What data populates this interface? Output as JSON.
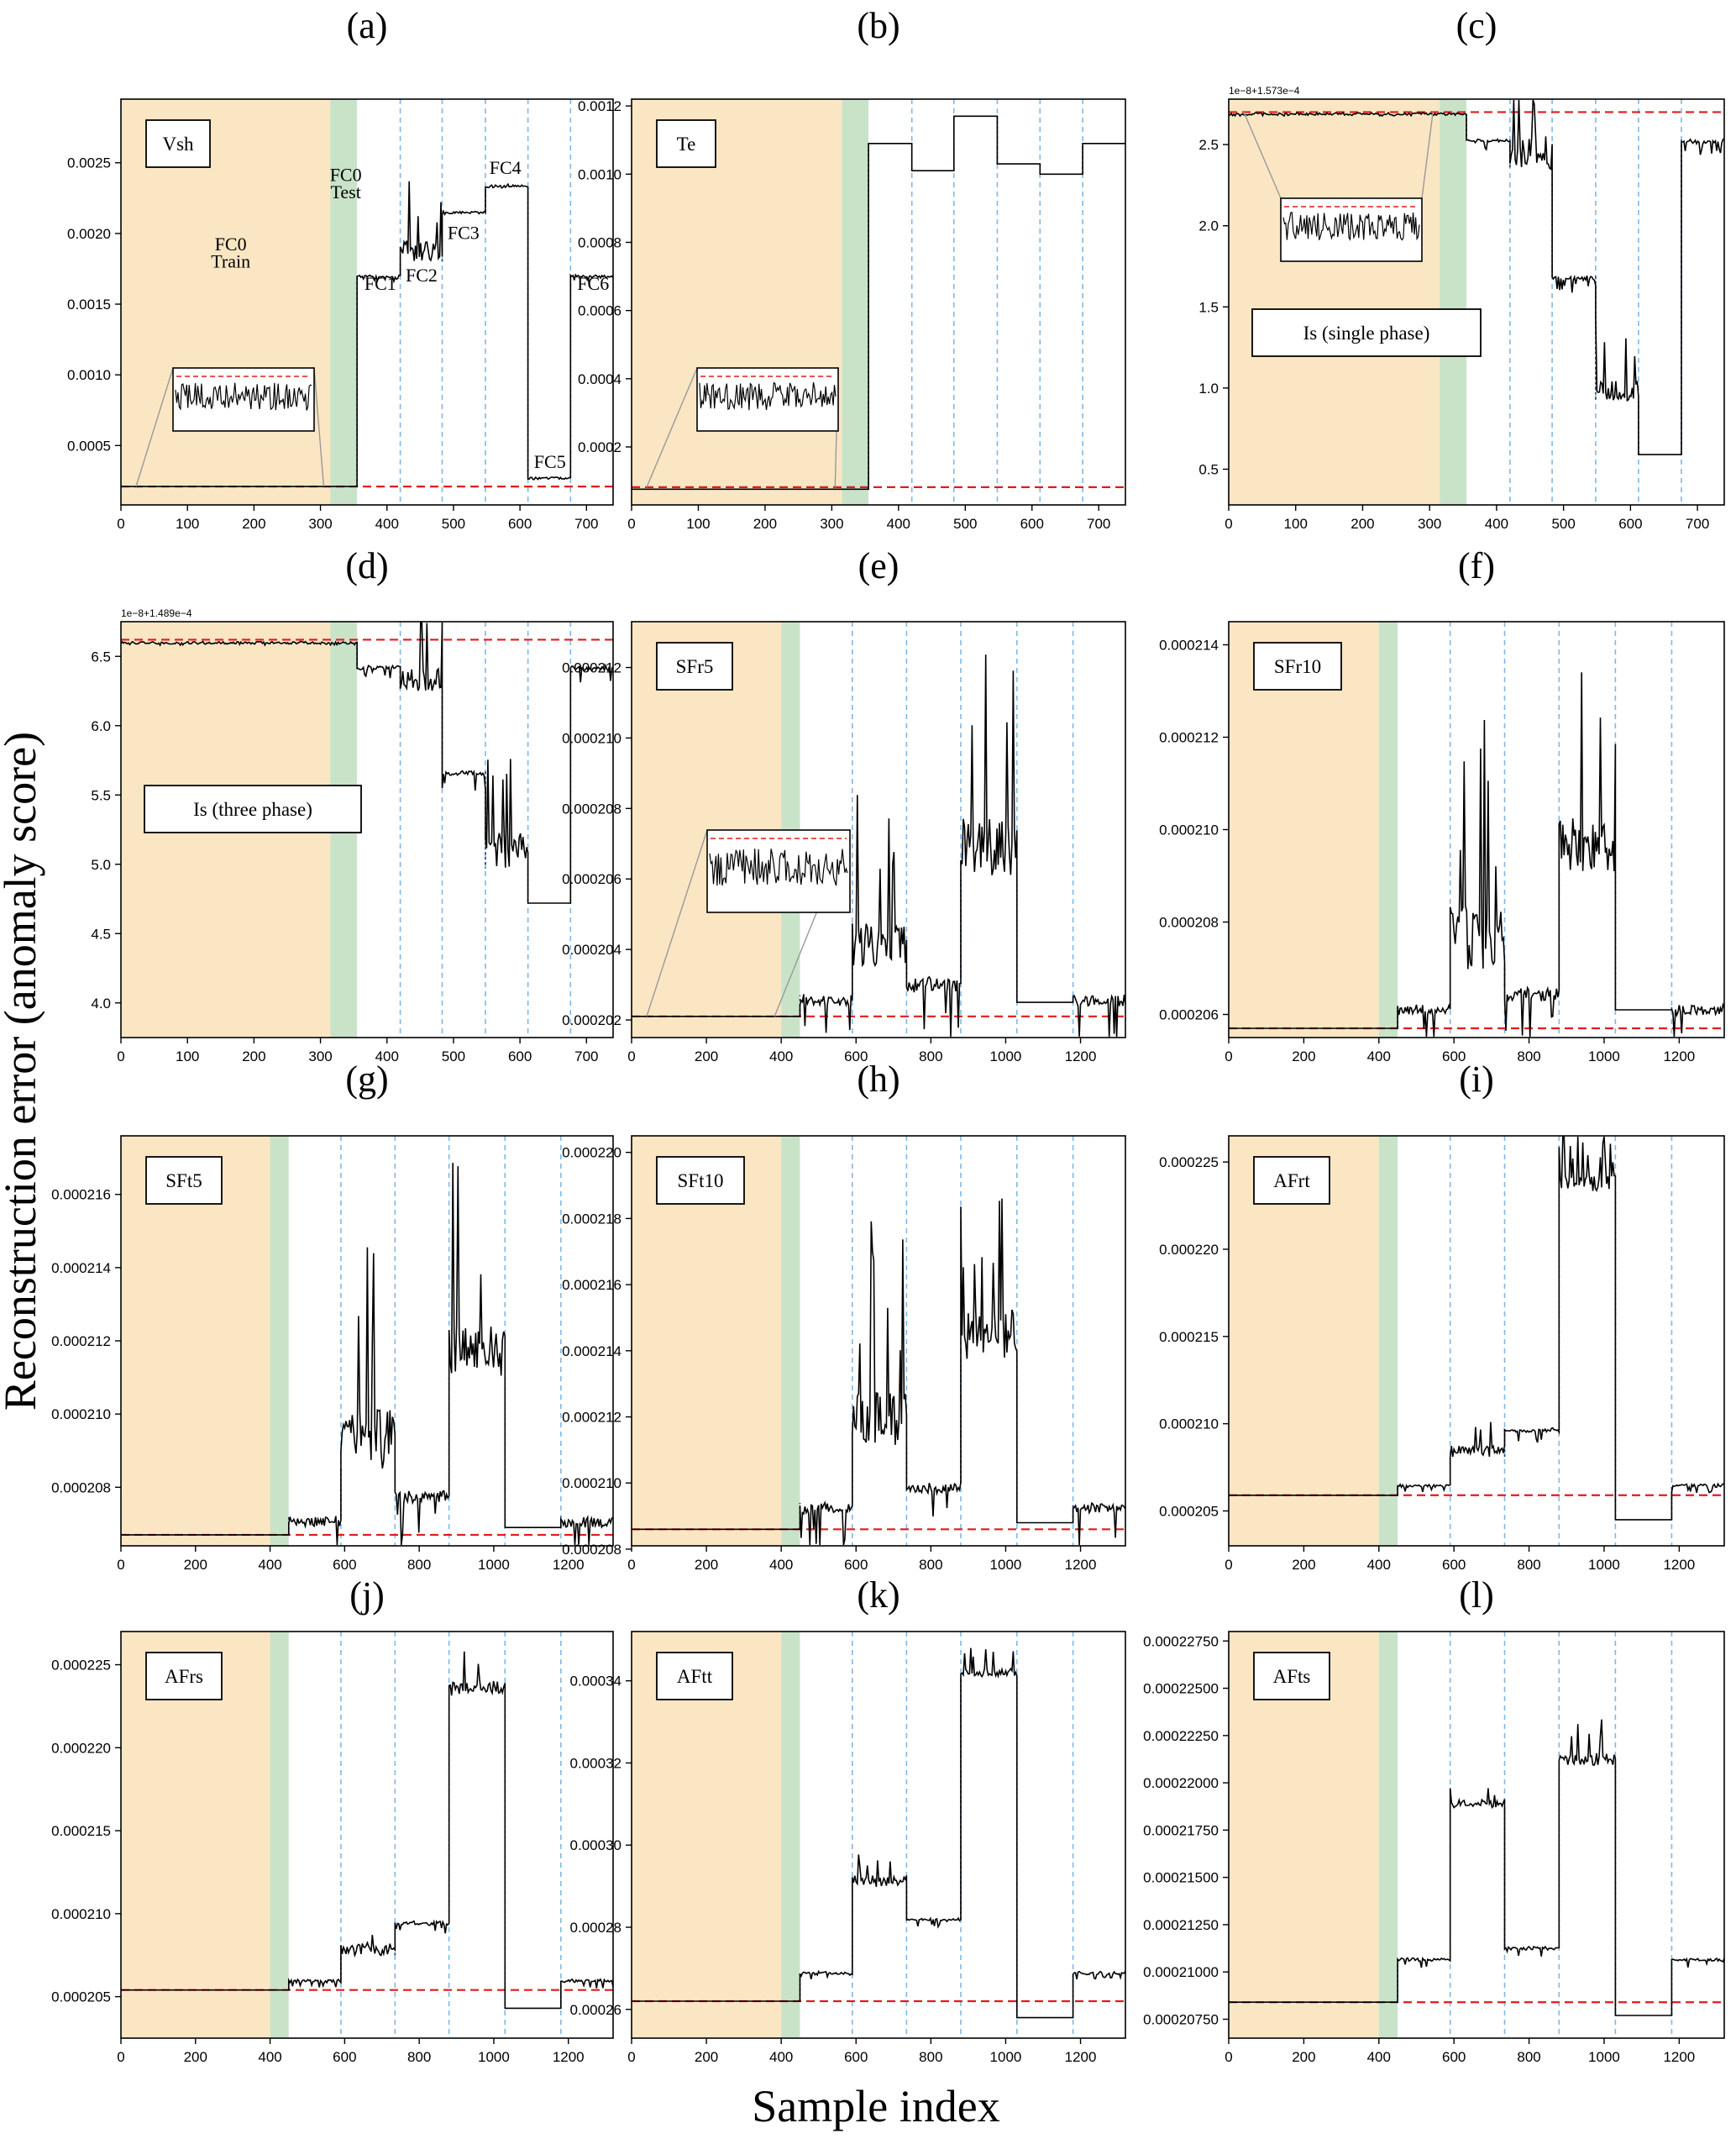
{
  "figure": {
    "ylabel": "Reconstruction error (anomaly score)",
    "xlabel": "Sample index"
  },
  "colors": {
    "train_bg": "#fbe6c4",
    "test_bg": "#c9e3c9",
    "threshold": "#e41a1c",
    "divider": "#7fb8e6",
    "series": "#000000",
    "train_line": "#b2182b"
  },
  "chart_data": [
    {
      "type": "line",
      "label": "(a)",
      "box_label": "Vsh",
      "xlim": [
        0,
        740
      ],
      "ylim": [
        8e-05,
        0.00295
      ],
      "yticks": [
        "0.0005",
        "0.0010",
        "0.0015",
        "0.0020",
        "0.0025"
      ],
      "ytick_values": [
        0.0005,
        0.001,
        0.0015,
        0.002,
        0.0025
      ],
      "xticks": [
        0,
        100,
        200,
        300,
        400,
        500,
        600,
        700
      ],
      "train_end": 315,
      "test_end": 355,
      "dividers": [
        420,
        483,
        548,
        612,
        676
      ],
      "threshold": 0.00021,
      "levels": [
        0.00021,
        0.0017,
        0.0018,
        0.00215,
        0.00233,
        0.00027,
        0.0017
      ],
      "noise": [
        0,
        4e-05,
        0.0006,
        2e-05,
        2e-05,
        1e-05,
        4e-05
      ],
      "zoom_inset": true,
      "annotations": [
        {
          "text": "FC0",
          "x": 165,
          "y": 0.00188
        },
        {
          "text": "Train",
          "x": 165,
          "y": 0.00176
        },
        {
          "text": "FC0",
          "x": 338,
          "y": 0.00237
        },
        {
          "text": "Test",
          "x": 338,
          "y": 0.00225
        },
        {
          "text": "FC1",
          "x": 390,
          "y": 0.0016
        },
        {
          "text": "FC2",
          "x": 452,
          "y": 0.00166
        },
        {
          "text": "FC3",
          "x": 515,
          "y": 0.00196
        },
        {
          "text": "FC4",
          "x": 578,
          "y": 0.00242
        },
        {
          "text": "FC5",
          "x": 645,
          "y": 0.00034
        },
        {
          "text": "FC6",
          "x": 710,
          "y": 0.0016
        }
      ]
    },
    {
      "type": "line",
      "label": "(b)",
      "box_label": "Te",
      "xlim": [
        0,
        740
      ],
      "ylim": [
        3e-05,
        0.00122
      ],
      "yticks": [
        "0.0002",
        "0.0004",
        "0.0006",
        "0.0008",
        "0.0010",
        "0.0012"
      ],
      "ytick_values": [
        0.0002,
        0.0004,
        0.0006,
        0.0008,
        0.001,
        0.0012
      ],
      "xticks": [
        0,
        100,
        200,
        300,
        400,
        500,
        600,
        700
      ],
      "train_end": 315,
      "test_end": 355,
      "dividers": [
        420,
        483,
        548,
        612,
        676
      ],
      "threshold": 8.2e-05,
      "levels": [
        7.6e-05,
        0.00109,
        0.00101,
        0.00117,
        0.00103,
        0.001,
        0.00109
      ],
      "noise": [
        0,
        0,
        0,
        0,
        0,
        0,
        0
      ],
      "zoom_inset": true
    },
    {
      "type": "line",
      "label": "(c)",
      "box_label": "Is (single phase)",
      "offset_text": "1e−8+1.573e−4",
      "xlim": [
        0,
        740
      ],
      "ylim": [
        0.28,
        2.78
      ],
      "yticks": [
        "0.5",
        "1.0",
        "1.5",
        "2.0",
        "2.5"
      ],
      "ytick_values": [
        0.5,
        1.0,
        1.5,
        2.0,
        2.5
      ],
      "xticks": [
        0,
        100,
        200,
        300,
        400,
        500,
        600,
        700
      ],
      "train_end": 315,
      "test_end": 355,
      "dividers": [
        420,
        483,
        548,
        612,
        676
      ],
      "threshold": 2.7,
      "levels": [
        2.69,
        2.53,
        2.35,
        1.69,
        0.92,
        0.59,
        2.53
      ],
      "noise": [
        0.015,
        0.06,
        0.9,
        0.12,
        0.55,
        0,
        0.1
      ],
      "zoom_inset": true
    },
    {
      "type": "line",
      "label": "(d)",
      "box_label": "Is (three phase)",
      "offset_text": "1e−8+1.489e−4",
      "xlim": [
        0,
        740
      ],
      "ylim": [
        3.75,
        6.75
      ],
      "yticks": [
        "4.0",
        "4.5",
        "5.0",
        "5.5",
        "6.0",
        "6.5"
      ],
      "ytick_values": [
        4.0,
        4.5,
        5.0,
        5.5,
        6.0,
        6.5
      ],
      "xticks": [
        0,
        100,
        200,
        300,
        400,
        500,
        600,
        700
      ],
      "train_end": 315,
      "test_end": 355,
      "dividers": [
        420,
        483,
        548,
        612,
        676
      ],
      "threshold": 6.62,
      "levels": [
        6.6,
        6.43,
        6.25,
        5.67,
        4.97,
        4.72,
        6.43
      ],
      "noise": [
        0.02,
        0.1,
        0.65,
        0.15,
        1.1,
        0,
        0.15
      ],
      "zoom_inset": false
    },
    {
      "type": "line",
      "label": "(e)",
      "box_label": "SFr5",
      "xlim": [
        0,
        1320
      ],
      "ylim": [
        0.0002015,
        0.0002133
      ],
      "yticks": [
        "0.000202",
        "0.000204",
        "0.000206",
        "0.000208",
        "0.000210",
        "0.000212"
      ],
      "ytick_values": [
        0.000202,
        0.000204,
        0.000206,
        0.000208,
        0.00021,
        0.000212
      ],
      "xticks": [
        0,
        200,
        400,
        600,
        800,
        1000,
        1200
      ],
      "train_end": 400,
      "test_end": 450,
      "dividers": [
        590,
        735,
        880,
        1030,
        1180
      ],
      "threshold": 0.0002021,
      "levels": [
        0.0002021,
        0.0002027,
        0.0002035,
        0.0002032,
        0.000206,
        0.0002025,
        0.0002027
      ],
      "noise": [
        0,
        1.5e-06,
        5e-06,
        2e-06,
        7e-06,
        0,
        1.5e-06
      ],
      "zoom_inset": true
    },
    {
      "type": "line",
      "label": "(f)",
      "box_label": "SFr10",
      "xlim": [
        0,
        1320
      ],
      "ylim": [
        0.0002055,
        0.0002145
      ],
      "yticks": [
        "0.000206",
        "0.000208",
        "0.000210",
        "0.000212",
        "0.000214"
      ],
      "ytick_values": [
        0.000206,
        0.000208,
        0.00021,
        0.000212,
        0.000214
      ],
      "xticks": [
        0,
        200,
        400,
        600,
        800,
        1000,
        1200
      ],
      "train_end": 400,
      "test_end": 450,
      "dividers": [
        590,
        735,
        880,
        1030,
        1180
      ],
      "threshold": 0.0002057,
      "levels": [
        0.0002057,
        0.0002062,
        0.000207,
        0.0002066,
        0.0002091,
        0.0002061,
        0.0002062
      ],
      "noise": [
        0,
        1e-06,
        5.5e-06,
        1.5e-06,
        5e-06,
        0,
        1e-06
      ],
      "zoom_inset": false
    },
    {
      "type": "line",
      "label": "(g)",
      "box_label": "SFt5",
      "xlim": [
        0,
        1320
      ],
      "ylim": [
        0.0002064,
        0.0002176
      ],
      "yticks": [
        "0.000208",
        "0.000210",
        "0.000212",
        "0.000214",
        "0.000216"
      ],
      "ytick_values": [
        0.000208,
        0.00021,
        0.000212,
        0.000214,
        0.000216
      ],
      "xticks": [
        0,
        200,
        400,
        600,
        800,
        1000,
        1200
      ],
      "train_end": 400,
      "test_end": 450,
      "dividers": [
        590,
        735,
        880,
        1030,
        1180
      ],
      "threshold": 0.0002067,
      "levels": [
        0.0002067,
        0.0002072,
        0.0002085,
        0.0002079,
        0.000211,
        0.0002069,
        0.0002072
      ],
      "noise": [
        0,
        1.5e-06,
        6.5e-06,
        1.5e-06,
        6e-06,
        0,
        1.5e-06
      ],
      "zoom_inset": false
    },
    {
      "type": "line",
      "label": "(h)",
      "box_label": "SFt10",
      "xlim": [
        0,
        1320
      ],
      "ylim": [
        0.0002081,
        0.0002205
      ],
      "yticks": [
        "0.000208",
        "0.000210",
        "0.000212",
        "0.000214",
        "0.000216",
        "0.000218",
        "0.000220"
      ],
      "ytick_values": [
        0.000208,
        0.00021,
        0.000212,
        0.000214,
        0.000216,
        0.000218,
        0.00022
      ],
      "xticks": [
        0,
        200,
        400,
        600,
        800,
        1000,
        1200
      ],
      "train_end": 400,
      "test_end": 450,
      "dividers": [
        590,
        735,
        880,
        1030,
        1180
      ],
      "threshold": 0.0002086,
      "levels": [
        0.0002086,
        0.0002094,
        0.0002111,
        0.00021,
        0.0002137,
        0.0002088,
        0.0002094
      ],
      "noise": [
        0,
        1.5e-06,
        7e-06,
        1.5e-06,
        6.5e-06,
        0,
        1.5e-06
      ],
      "zoom_inset": false
    },
    {
      "type": "line",
      "label": "(i)",
      "box_label": "AFrt",
      "xlim": [
        0,
        1320
      ],
      "ylim": [
        0.000203,
        0.0002265
      ],
      "yticks": [
        "0.000205",
        "0.000210",
        "0.000215",
        "0.000220",
        "0.000225"
      ],
      "ytick_values": [
        0.000205,
        0.00021,
        0.000215,
        0.00022,
        0.000225
      ],
      "xticks": [
        0,
        200,
        400,
        600,
        800,
        1000,
        1200
      ],
      "train_end": 400,
      "test_end": 450,
      "dividers": [
        590,
        735,
        880,
        1030,
        1180
      ],
      "threshold": 0.0002059,
      "levels": [
        0.0002059,
        0.0002065,
        0.0002081,
        0.0002097,
        0.0002233,
        0.0002045,
        0.0002065
      ],
      "noise": [
        0,
        5e-07,
        3e-06,
        8e-07,
        4e-06,
        0,
        5e-07
      ],
      "zoom_inset": false
    },
    {
      "type": "line",
      "label": "(j)",
      "box_label": "AFrs",
      "xlim": [
        0,
        1320
      ],
      "ylim": [
        0.0002025,
        0.000227
      ],
      "yticks": [
        "0.000205",
        "0.000210",
        "0.000215",
        "0.000220",
        "0.000225"
      ],
      "ytick_values": [
        0.000205,
        0.00021,
        0.000215,
        0.00022,
        0.000225
      ],
      "xticks": [
        0,
        200,
        400,
        600,
        800,
        1000,
        1200
      ],
      "train_end": 400,
      "test_end": 450,
      "dividers": [
        590,
        735,
        880,
        1030,
        1180
      ],
      "threshold": 0.0002054,
      "levels": [
        0.0002054,
        0.000206,
        0.0002075,
        0.0002095,
        0.0002232,
        0.0002043,
        0.000206
      ],
      "noise": [
        0,
        5e-07,
        3e-06,
        8e-07,
        3.5e-06,
        0,
        5e-07
      ],
      "zoom_inset": false
    },
    {
      "type": "line",
      "label": "(k)",
      "box_label": "AFtt",
      "xlim": [
        0,
        1320
      ],
      "ylim": [
        0.000253,
        0.000352
      ],
      "yticks": [
        "0.00026",
        "0.00028",
        "0.00030",
        "0.00032",
        "0.00034"
      ],
      "ytick_values": [
        0.00026,
        0.00028,
        0.0003,
        0.00032,
        0.00034
      ],
      "xticks": [
        0,
        200,
        400,
        600,
        800,
        1000,
        1200
      ],
      "train_end": 400,
      "test_end": 450,
      "dividers": [
        590,
        735,
        880,
        1030,
        1180
      ],
      "threshold": 0.000262,
      "levels": [
        0.000262,
        0.000269,
        0.00029,
        0.000282,
        0.000341,
        0.000258,
        0.000269
      ],
      "noise": [
        0,
        2e-06,
        1e-05,
        2e-06,
        8e-06,
        0,
        2e-06
      ],
      "zoom_inset": false
    },
    {
      "type": "line",
      "label": "(l)",
      "box_label": "AFts",
      "xlim": [
        0,
        1320
      ],
      "ylim": [
        0.0002065,
        0.000228
      ],
      "yticks": [
        "0.00020750",
        "0.00021000",
        "0.00021250",
        "0.00021500",
        "0.00021750",
        "0.00022000",
        "0.00022250",
        "0.00022500",
        "0.00022750"
      ],
      "ytick_values": [
        0.0002075,
        0.00021,
        0.0002125,
        0.000215,
        0.0002175,
        0.00022,
        0.0002225,
        0.000225,
        0.0002275
      ],
      "xticks": [
        0,
        200,
        400,
        600,
        800,
        1000,
        1200
      ],
      "train_end": 400,
      "test_end": 450,
      "dividers": [
        590,
        735,
        880,
        1030,
        1180
      ],
      "threshold": 0.0002084,
      "levels": [
        0.0002084,
        0.0002107,
        0.0002187,
        0.0002113,
        0.0002209,
        0.0002077,
        0.0002107
      ],
      "noise": [
        0,
        5e-07,
        1.5e-06,
        5e-07,
        2.5e-06,
        0,
        5e-07
      ],
      "zoom_inset": false
    }
  ]
}
